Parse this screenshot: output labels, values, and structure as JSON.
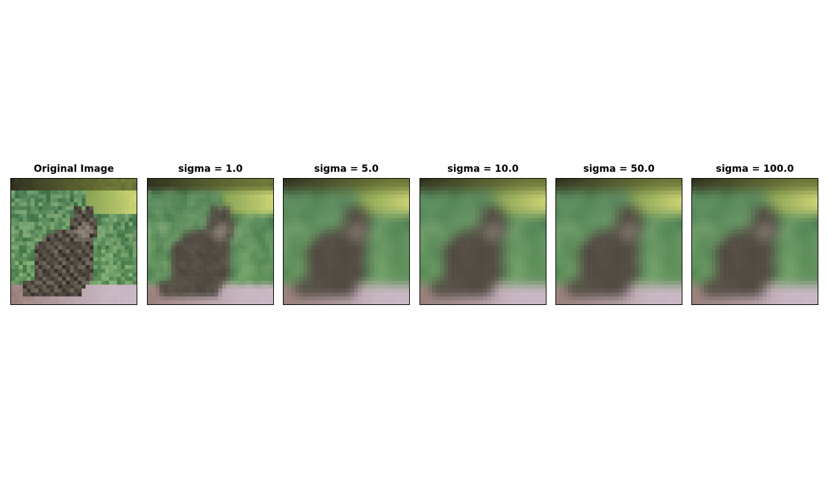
{
  "figure": {
    "panels": [
      {
        "title": "Original Image",
        "blur": 0.0
      },
      {
        "title": "sigma = 1.0",
        "blur": 1.0
      },
      {
        "title": "sigma = 5.0",
        "blur": 5.0
      },
      {
        "title": "sigma = 10.0",
        "blur": 10.0
      },
      {
        "title": "sigma = 50.0",
        "blur": 50.0
      },
      {
        "title": "sigma = 100.0",
        "blur": 100.0
      }
    ]
  }
}
